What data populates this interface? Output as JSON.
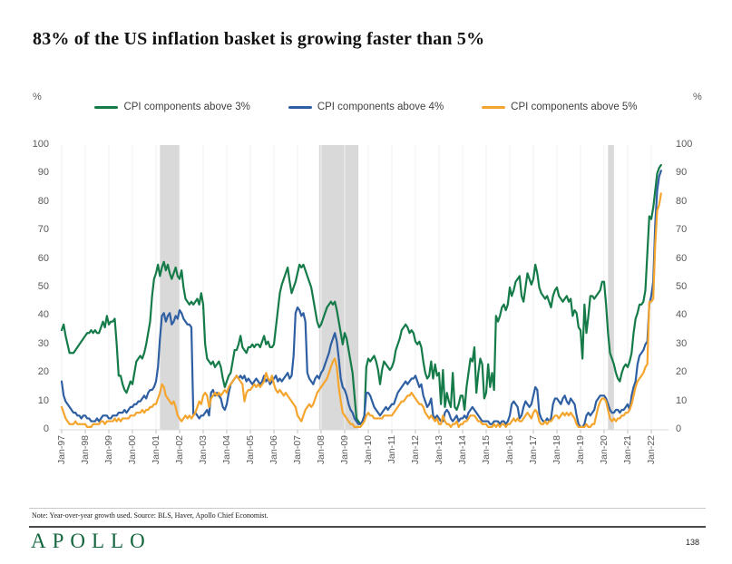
{
  "title": "83% of the US inflation basket is growing faster than 5%",
  "unit_left": "%",
  "unit_right": "%",
  "legend": [
    {
      "label": "CPI components above 3%",
      "color": "#157b49"
    },
    {
      "label": "CPI components above 4%",
      "color": "#2f5fa3"
    },
    {
      "label": "CPI components above 5%",
      "color": "#f4a52e"
    }
  ],
  "note": "Note: Year-over-year growth used. Source: BLS, Haver, Apollo Chief Economist.",
  "footer": {
    "logo": "APOLLO",
    "page_number": "138"
  },
  "chart_data": {
    "type": "line",
    "frequency": "monthly",
    "x_start": "Jan-1997",
    "x_end": "Jun-2022",
    "ylim": [
      0,
      100
    ],
    "grid": "faint-vertical-yearly",
    "legend_position": "top-center",
    "recession_band_color": "#d9d9d9",
    "recession_bands_month_index": [
      [
        50,
        60
      ],
      [
        131,
        151
      ],
      [
        278,
        281
      ]
    ],
    "y_ticks": [
      0,
      10,
      20,
      30,
      40,
      50,
      60,
      70,
      80,
      90,
      100
    ],
    "x_tick_labels": [
      "Jan-97",
      "Jan-98",
      "Jan-99",
      "Jan-00",
      "Jan-01",
      "Jan-02",
      "Jan-03",
      "Jan-04",
      "Jan-05",
      "Jan-06",
      "Jan-07",
      "Jan-08",
      "Jan-09",
      "Jan-10",
      "Jan-11",
      "Jan-12",
      "Jan-13",
      "Jan-14",
      "Jan-15",
      "Jan-16",
      "Jan-17",
      "Jan-18",
      "Jan-19",
      "Jan-20",
      "Jan-21",
      "Jan-22"
    ],
    "series": [
      {
        "name": "CPI components above 3%",
        "color": "#157b49",
        "values": [
          35,
          37,
          33,
          30,
          27,
          27,
          27,
          28,
          29,
          30,
          31,
          32,
          33,
          34,
          34,
          35,
          34,
          35,
          34,
          34,
          36,
          38,
          36,
          40,
          37,
          38,
          38,
          39,
          30,
          19,
          19,
          16,
          14,
          13,
          15,
          17,
          16,
          20,
          24,
          25,
          26,
          25,
          27,
          30,
          34,
          38,
          47,
          53,
          55,
          58,
          54,
          57,
          59,
          56,
          58,
          55,
          53,
          55,
          57,
          54,
          53,
          56,
          50,
          46,
          45,
          44,
          45,
          44,
          45,
          46,
          44,
          48,
          44,
          30,
          25,
          24,
          23,
          24,
          22,
          23,
          24,
          22,
          18,
          15,
          17,
          19,
          20,
          24,
          28,
          28,
          30,
          33,
          29,
          28,
          27,
          29,
          29,
          30,
          29,
          30,
          30,
          29,
          31,
          33,
          30,
          31,
          29,
          29,
          30,
          36,
          42,
          48,
          51,
          53,
          55,
          57,
          52,
          48,
          50,
          52,
          55,
          58,
          57,
          58,
          56,
          54,
          52,
          50,
          46,
          42,
          38,
          36,
          37,
          39,
          41,
          43,
          44,
          45,
          44,
          45,
          42,
          38,
          34,
          30,
          34,
          32,
          28,
          24,
          20,
          12,
          4,
          3,
          2,
          2,
          4,
          22,
          25,
          24,
          25,
          26,
          24,
          21,
          16,
          21,
          24,
          23,
          22,
          21,
          22,
          24,
          28,
          30,
          32,
          35,
          36,
          37,
          36,
          34,
          35,
          34,
          31,
          30,
          31,
          29,
          24,
          20,
          18,
          19,
          24,
          18,
          23,
          19,
          20,
          9,
          21,
          8,
          13,
          10,
          8,
          20,
          8,
          7,
          9,
          12,
          12,
          7,
          15,
          20,
          25,
          24,
          29,
          13,
          20,
          25,
          23,
          11,
          13,
          23,
          15,
          20,
          14,
          40,
          38,
          40,
          43,
          44,
          42,
          44,
          50,
          47,
          49,
          52,
          53,
          54,
          47,
          45,
          50,
          55,
          53,
          51,
          53,
          58,
          55,
          50,
          48,
          47,
          46,
          47,
          45,
          43,
          47,
          49,
          50,
          47,
          46,
          45,
          46,
          47,
          45,
          46,
          40,
          42,
          41,
          36,
          35,
          25,
          44,
          34,
          40,
          47,
          47,
          46,
          47,
          48,
          49,
          52,
          52,
          44,
          34,
          27,
          25,
          23,
          20,
          18,
          17,
          20,
          22,
          23,
          22,
          24,
          27,
          34,
          39,
          41,
          44,
          44,
          45,
          49,
          62,
          75,
          74,
          78,
          84,
          90,
          92,
          93
        ]
      },
      {
        "name": "CPI components above 4%",
        "color": "#2f5fa3",
        "values": [
          17,
          12,
          10,
          9,
          8,
          7,
          6,
          6,
          5,
          5,
          4,
          5,
          5,
          4,
          4,
          3,
          3,
          3,
          4,
          3,
          4,
          5,
          5,
          5,
          4,
          4,
          5,
          5,
          5,
          6,
          6,
          6,
          7,
          6,
          7,
          8,
          8,
          9,
          9,
          10,
          10,
          11,
          12,
          11,
          13,
          14,
          14,
          15,
          17,
          22,
          32,
          40,
          41,
          38,
          40,
          41,
          37,
          38,
          40,
          39,
          42,
          41,
          39,
          38,
          37,
          37,
          36,
          5,
          6,
          5,
          4,
          5,
          5,
          6,
          7,
          5,
          13,
          14,
          12,
          13,
          12,
          11,
          8,
          7,
          9,
          13,
          16,
          17,
          18,
          19,
          18,
          19,
          18,
          19,
          17,
          18,
          17,
          16,
          17,
          18,
          17,
          16,
          17,
          19,
          17,
          18,
          16,
          17,
          18,
          19,
          17,
          18,
          17,
          18,
          19,
          20,
          18,
          19,
          26,
          41,
          43,
          42,
          40,
          41,
          38,
          20,
          18,
          17,
          16,
          18,
          19,
          18,
          20,
          21,
          23,
          25,
          27,
          30,
          32,
          34,
          31,
          25,
          18,
          15,
          14,
          12,
          9,
          7,
          6,
          4,
          3,
          2,
          2,
          3,
          5,
          13,
          13,
          12,
          10,
          8,
          7,
          6,
          5,
          6,
          7,
          8,
          7,
          8,
          9,
          9,
          11,
          13,
          14,
          15,
          16,
          17,
          16,
          17,
          18,
          18,
          19,
          17,
          15,
          16,
          12,
          10,
          8,
          9,
          11,
          5,
          4,
          5,
          4,
          3,
          3,
          6,
          7,
          6,
          4,
          3,
          4,
          5,
          3,
          4,
          4,
          5,
          4,
          6,
          7,
          8,
          7,
          6,
          5,
          4,
          3,
          3,
          3,
          3,
          2,
          2,
          3,
          3,
          3,
          2,
          3,
          3,
          2,
          3,
          5,
          9,
          10,
          9,
          8,
          4,
          5,
          8,
          10,
          9,
          8,
          9,
          12,
          15,
          14,
          6,
          4,
          3,
          3,
          4,
          3,
          4,
          9,
          11,
          11,
          10,
          9,
          11,
          12,
          10,
          9,
          11,
          10,
          9,
          5,
          2,
          1,
          1,
          2,
          5,
          6,
          5,
          6,
          7,
          10,
          11,
          12,
          12,
          12,
          11,
          9,
          7,
          6,
          6,
          7,
          7,
          6,
          7,
          7,
          8,
          9,
          7,
          12,
          15,
          17,
          23,
          26,
          27,
          28,
          30,
          31,
          44,
          47,
          52,
          72,
          84,
          89,
          91
        ]
      },
      {
        "name": "CPI components above 5%",
        "color": "#f4a52e",
        "values": [
          8,
          6,
          4,
          3,
          2,
          2,
          2,
          3,
          2,
          2,
          2,
          2,
          2,
          1,
          1,
          1,
          2,
          2,
          2,
          2,
          3,
          3,
          2,
          3,
          3,
          3,
          3,
          4,
          3,
          4,
          3,
          4,
          4,
          4,
          4,
          5,
          5,
          5,
          6,
          6,
          6,
          7,
          6,
          7,
          7,
          8,
          8,
          9,
          9,
          11,
          13,
          16,
          15,
          12,
          11,
          10,
          9,
          10,
          8,
          5,
          4,
          3,
          4,
          5,
          4,
          5,
          4,
          5,
          6,
          8,
          10,
          9,
          12,
          13,
          12,
          8,
          11,
          12,
          13,
          12,
          13,
          12,
          13,
          14,
          13,
          15,
          16,
          17,
          18,
          19,
          18,
          17,
          16,
          10,
          13,
          14,
          14,
          15,
          16,
          15,
          16,
          15,
          16,
          17,
          20,
          18,
          17,
          19,
          16,
          14,
          13,
          14,
          13,
          12,
          13,
          12,
          11,
          10,
          9,
          8,
          5,
          4,
          3,
          5,
          7,
          8,
          9,
          8,
          9,
          11,
          13,
          14,
          15,
          16,
          17,
          18,
          20,
          22,
          24,
          25,
          22,
          15,
          10,
          6,
          5,
          4,
          3,
          2,
          2,
          1,
          1,
          1,
          1,
          2,
          3,
          5,
          6,
          5,
          5,
          4,
          4,
          4,
          4,
          4,
          5,
          5,
          5,
          5,
          5,
          6,
          7,
          8,
          9,
          10,
          10,
          11,
          12,
          12,
          13,
          12,
          11,
          10,
          9,
          9,
          8,
          6,
          5,
          4,
          5,
          4,
          3,
          4,
          2,
          2,
          5,
          3,
          2,
          2,
          1,
          2,
          2,
          3,
          1,
          2,
          2,
          3,
          3,
          4,
          5,
          5,
          5,
          4,
          3,
          3,
          2,
          2,
          2,
          1,
          1,
          1,
          2,
          1,
          2,
          1,
          2,
          2,
          1,
          2,
          2,
          3,
          4,
          3,
          4,
          3,
          3,
          4,
          5,
          6,
          5,
          4,
          6,
          7,
          6,
          3,
          2,
          2,
          3,
          2,
          3,
          3,
          4,
          5,
          5,
          4,
          5,
          6,
          5,
          6,
          5,
          6,
          5,
          4,
          2,
          1,
          1,
          1,
          1,
          2,
          1,
          1,
          2,
          2,
          5,
          8,
          10,
          11,
          11,
          10,
          7,
          4,
          3,
          4,
          3,
          4,
          4,
          5,
          5,
          6,
          6,
          7,
          9,
          12,
          15,
          17,
          18,
          19,
          20,
          22,
          23,
          45,
          45,
          46,
          65,
          77,
          79,
          83
        ]
      }
    ]
  }
}
